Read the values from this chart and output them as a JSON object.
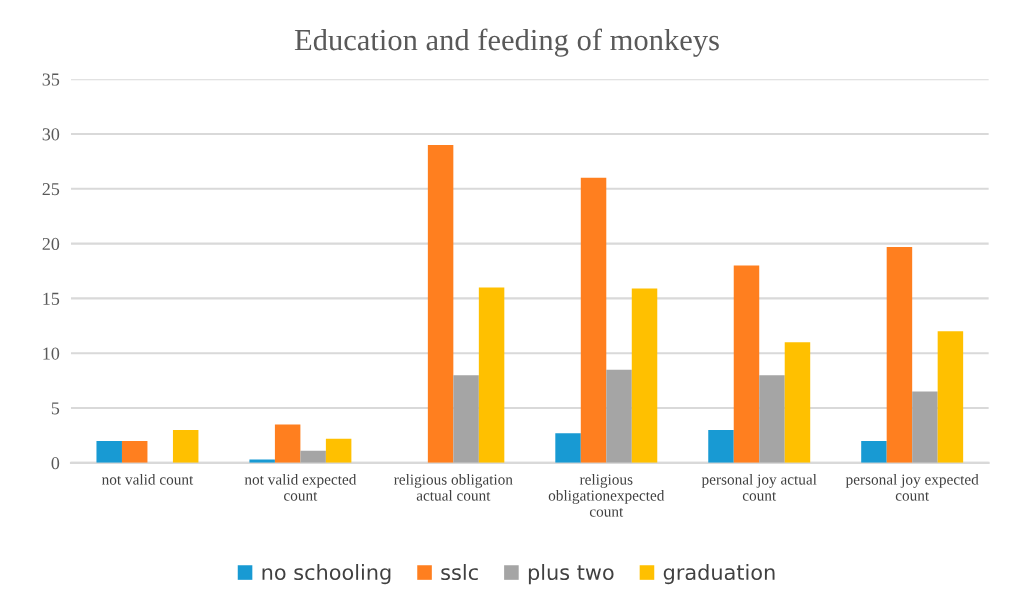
{
  "chart_data": {
    "type": "bar",
    "title": "Education and feeding of monkeys",
    "categories": [
      "not valid count",
      "not valid expected\ncount",
      "religious obligation\nactual count",
      "religious\nobligationexpected\ncount",
      "personal joy actual\ncount",
      "personal joy expected\ncount"
    ],
    "series": [
      {
        "name": "no schooling",
        "color": "#189ad3",
        "values": [
          2,
          0.3,
          0,
          2.7,
          3,
          2
        ]
      },
      {
        "name": "sslc",
        "color": "#ff7f1f",
        "values": [
          2,
          3.5,
          29,
          26,
          18,
          19.7
        ]
      },
      {
        "name": "plus two",
        "color": "#a5a5a5",
        "values": [
          0,
          1.1,
          8,
          8.5,
          8,
          6.5
        ]
      },
      {
        "name": "graduation",
        "color": "#ffc000",
        "values": [
          3,
          2.2,
          16,
          15.9,
          11,
          12
        ]
      }
    ],
    "ylim": [
      0,
      35
    ],
    "yticks": [
      0,
      5,
      10,
      15,
      20,
      25,
      30,
      35
    ],
    "grid": "y",
    "legend": "bottom"
  }
}
